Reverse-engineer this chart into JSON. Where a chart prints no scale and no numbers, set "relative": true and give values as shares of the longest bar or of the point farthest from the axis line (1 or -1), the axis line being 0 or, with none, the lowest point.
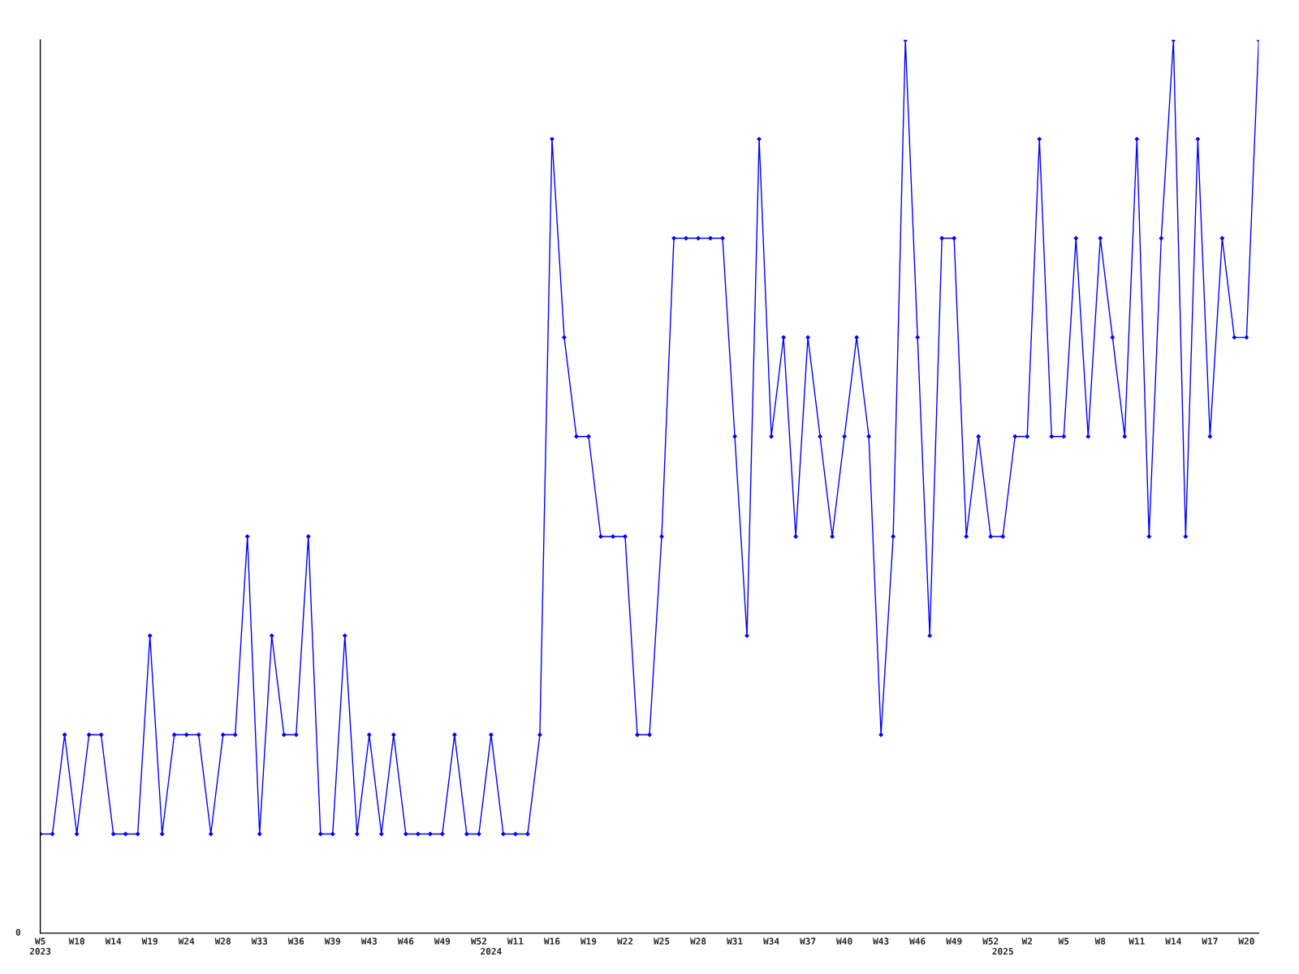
{
  "chart_data": {
    "type": "line",
    "relative": true,
    "marker": "diamond",
    "line_style": "solid",
    "grid": false,
    "legend": false,
    "annotations": [
      "0"
    ],
    "categories": [
      "W5\n2023",
      null,
      null,
      "W10",
      null,
      null,
      "W14",
      null,
      null,
      "W19",
      null,
      null,
      "W24",
      null,
      null,
      "W28",
      null,
      null,
      "W33",
      null,
      null,
      "W36",
      null,
      null,
      "W39",
      null,
      null,
      "W43",
      null,
      null,
      "W46",
      null,
      null,
      "W49",
      null,
      null,
      "W52",
      "\n2024",
      null,
      "W11",
      null,
      null,
      "W16",
      null,
      null,
      "W19",
      null,
      null,
      "W22",
      null,
      null,
      "W25",
      null,
      null,
      "W28",
      null,
      null,
      "W31",
      null,
      null,
      "W34",
      null,
      null,
      "W37",
      null,
      null,
      "W40",
      null,
      null,
      "W43",
      null,
      null,
      "W46",
      null,
      null,
      "W49",
      null,
      null,
      "W52",
      "\n2025",
      null,
      "W2",
      null,
      null,
      "W5",
      null,
      null,
      "W8",
      null,
      null,
      "W11",
      null,
      null,
      "W14",
      null,
      null,
      "W17",
      null,
      null,
      "W20",
      null
    ],
    "series": [
      {
        "color": "#0000ff",
        "values": [
          0.111,
          0.111,
          0.222,
          0.111,
          0.222,
          0.222,
          0.111,
          0.111,
          0.111,
          0.333,
          0.111,
          0.222,
          0.222,
          0.222,
          0.111,
          0.222,
          0.222,
          0.444,
          0.111,
          0.333,
          0.222,
          0.222,
          0.444,
          0.111,
          0.111,
          0.333,
          0.111,
          0.222,
          0.111,
          0.222,
          0.111,
          0.111,
          0.111,
          0.111,
          0.222,
          0.111,
          0.111,
          0.222,
          0.111,
          0.111,
          0.111,
          0.222,
          0.889,
          0.667,
          0.556,
          0.556,
          0.444,
          0.444,
          0.444,
          0.222,
          0.222,
          0.444,
          0.778,
          0.778,
          0.778,
          0.778,
          0.778,
          0.556,
          0.333,
          0.889,
          0.556,
          0.667,
          0.444,
          0.667,
          0.556,
          0.444,
          0.556,
          0.667,
          0.556,
          0.222,
          0.444,
          1,
          0.667,
          0.333,
          0.778,
          0.778,
          0.444,
          0.556,
          0.444,
          0.444,
          0.556,
          0.556,
          0.889,
          0.556,
          0.556,
          0.778,
          0.556,
          0.778,
          0.667,
          0.556,
          0.889,
          0.444,
          0.778,
          1,
          0.444,
          0.889,
          0.556,
          0.778,
          0.667,
          0.667,
          1
        ]
      }
    ]
  }
}
